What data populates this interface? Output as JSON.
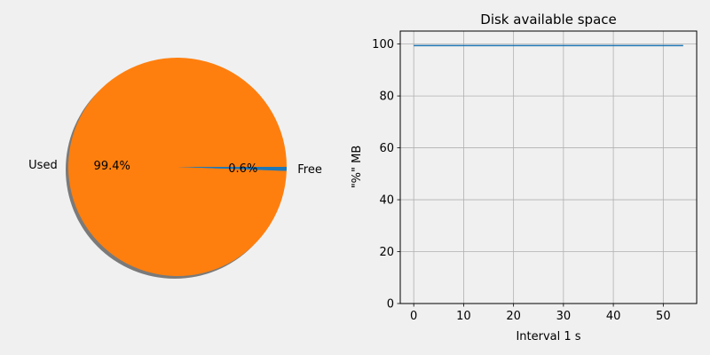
{
  "chart_data": [
    {
      "type": "pie",
      "labels": [
        "Used",
        "Free"
      ],
      "values": [
        99.4,
        0.6
      ],
      "value_labels": [
        "99.4%",
        "0.6%"
      ],
      "colors": [
        "#ff7f0e",
        "#1f77b4"
      ],
      "shadow": true,
      "title": "",
      "legend": "none"
    },
    {
      "type": "line",
      "title": "Disk available space",
      "xlabel": "Interval 1 s",
      "ylabel": "\"%\" MB",
      "xlim": [
        -2.7,
        56.7
      ],
      "ylim": [
        0,
        105
      ],
      "xticks": [
        0,
        10,
        20,
        30,
        40,
        50
      ],
      "yticks": [
        0,
        20,
        40,
        60,
        80,
        100
      ],
      "grid": true,
      "series": [
        {
          "color": "#1f77b4",
          "x": [
            0,
            54
          ],
          "y": [
            99.4,
            99.4
          ]
        }
      ]
    }
  ]
}
